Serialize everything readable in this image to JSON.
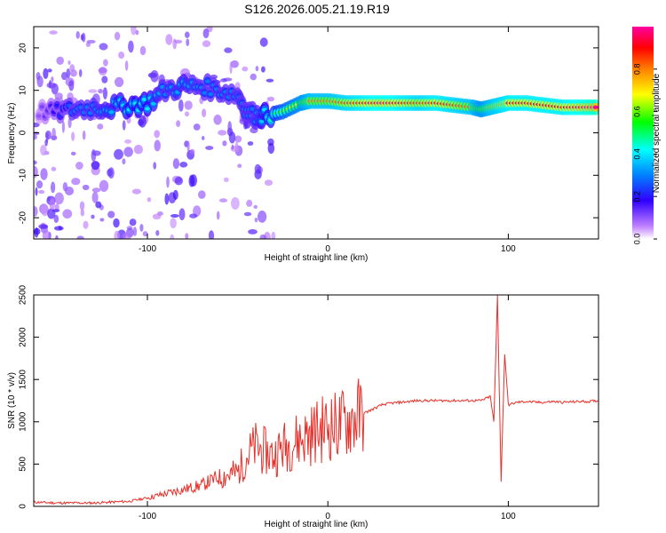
{
  "title": "S126.2026.005.21.19.R19",
  "colors": {
    "line": "#e8302a",
    "frame": "#000000",
    "background": "#ffffff"
  },
  "chart_data": [
    {
      "type": "heatmap",
      "xlabel": "Height of straight line (km)",
      "ylabel": "Frequency (Hz)",
      "xlim": [
        -163,
        150
      ],
      "ylim": [
        -25,
        25
      ],
      "xticks": [
        -100,
        0,
        100
      ],
      "yticks": [
        -20,
        -10,
        0,
        10,
        20
      ],
      "colorbar": {
        "label": "Normalized spectral amplitude",
        "range": [
          0,
          1
        ],
        "ticks": [
          "0.0",
          "0.2",
          "0.4",
          "0.6",
          "0.8"
        ],
        "tick_values": [
          0,
          0.2,
          0.4,
          0.6,
          0.8
        ]
      },
      "ridge": [
        [
          -160,
          5,
          0.1
        ],
        [
          -150,
          5,
          0.2
        ],
        [
          -140,
          5.5,
          0.3
        ],
        [
          -130,
          6,
          0.3
        ],
        [
          -120,
          6,
          0.35
        ],
        [
          -110,
          6.5,
          0.4
        ],
        [
          -100,
          7,
          0.4
        ],
        [
          -90,
          10,
          0.3
        ],
        [
          -80,
          11,
          0.35
        ],
        [
          -70,
          11,
          0.3
        ],
        [
          -60,
          10,
          0.3
        ],
        [
          -50,
          9,
          0.3
        ],
        [
          -45,
          5,
          0.3
        ],
        [
          -40,
          4,
          0.3
        ],
        [
          -35,
          4,
          0.4
        ],
        [
          -25,
          5,
          0.6
        ],
        [
          -15,
          7,
          0.7
        ],
        [
          -10,
          7.5,
          0.8
        ],
        [
          0,
          7.5,
          0.8
        ],
        [
          10,
          7,
          0.85
        ],
        [
          20,
          7,
          0.9
        ],
        [
          30,
          7,
          0.95
        ],
        [
          40,
          7,
          0.9
        ],
        [
          50,
          7,
          0.85
        ],
        [
          60,
          7,
          0.9
        ],
        [
          70,
          6.5,
          0.85
        ],
        [
          80,
          6,
          0.8
        ],
        [
          85,
          5.5,
          0.7
        ],
        [
          90,
          6,
          0.8
        ],
        [
          95,
          6.5,
          0.85
        ],
        [
          100,
          7,
          0.9
        ],
        [
          110,
          7,
          0.9
        ],
        [
          120,
          6.5,
          0.9
        ],
        [
          130,
          6,
          0.9
        ],
        [
          140,
          6,
          0.95
        ],
        [
          150,
          6,
          1.0
        ]
      ]
    },
    {
      "type": "line",
      "xlabel": "Height of straight line (km)",
      "ylabel": "SNR (10 * v/v)",
      "xlim": [
        -163,
        150
      ],
      "ylim": [
        0,
        2500
      ],
      "xticks": [
        -100,
        0,
        100
      ],
      "yticks": [
        0,
        500,
        1000,
        1500,
        2000,
        2500
      ],
      "x": [
        -163,
        -150,
        -140,
        -130,
        -120,
        -110,
        -100,
        -90,
        -80,
        -70,
        -60,
        -50,
        -45,
        -40,
        -35,
        -30,
        -25,
        -20,
        -15,
        -10,
        -5,
        0,
        5,
        10,
        15,
        20,
        25,
        30,
        35,
        40,
        45,
        50,
        60,
        70,
        80,
        85,
        90,
        92,
        94,
        96,
        98,
        100,
        105,
        110,
        115,
        120,
        125,
        130,
        140,
        145,
        150
      ],
      "y": [
        50,
        40,
        40,
        40,
        50,
        60,
        100,
        150,
        200,
        250,
        350,
        400,
        600,
        700,
        650,
        600,
        700,
        750,
        800,
        850,
        900,
        950,
        950,
        1000,
        1050,
        1100,
        1150,
        1200,
        1220,
        1230,
        1240,
        1250,
        1250,
        1250,
        1250,
        1250,
        1300,
        1000,
        2500,
        300,
        1800,
        1200,
        1230,
        1240,
        1230,
        1230,
        1240,
        1230,
        1240,
        1240,
        1250
      ]
    }
  ]
}
